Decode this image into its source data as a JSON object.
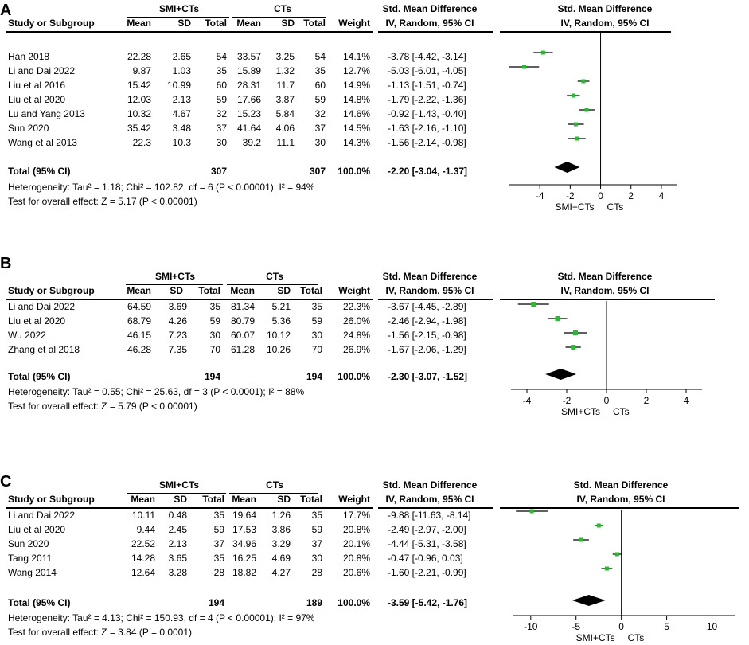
{
  "panels": [
    {
      "label": "A",
      "header": {
        "group1": "SMI+CTs",
        "group2": "CTs",
        "smd_title": "Std. Mean Difference",
        "smd_sub": "IV, Random, 95% CI",
        "plot_title": "Std. Mean Difference",
        "plot_sub": "IV, Random, 95% CI",
        "cols": [
          "Study or Subgroup",
          "Mean",
          "SD",
          "Total",
          "Mean",
          "SD",
          "Total",
          "Weight"
        ]
      },
      "studies": [
        {
          "name": "Han 2018",
          "m1": "22.28",
          "sd1": "2.65",
          "n1": "54",
          "m2": "33.57",
          "sd2": "3.25",
          "n2": "54",
          "weight": "14.1%",
          "ci": "-3.78 [-4.42, -3.14]"
        },
        {
          "name": "Li and Dai 2022",
          "m1": "9.87",
          "sd1": "1.03",
          "n1": "35",
          "m2": "15.89",
          "sd2": "1.32",
          "n2": "35",
          "weight": "12.7%",
          "ci": "-5.03 [-6.01, -4.05]"
        },
        {
          "name": "Liu et al 2016",
          "m1": "15.42",
          "sd1": "10.99",
          "n1": "60",
          "m2": "28.31",
          "sd2": "11.7",
          "n2": "60",
          "weight": "14.9%",
          "ci": "-1.13 [-1.51, -0.74]"
        },
        {
          "name": "Liu et al 2020",
          "m1": "12.03",
          "sd1": "2.13",
          "n1": "59",
          "m2": "17.66",
          "sd2": "3.87",
          "n2": "59",
          "weight": "14.8%",
          "ci": "-1.79 [-2.22, -1.36]"
        },
        {
          "name": "Lu and Yang 2013",
          "m1": "10.32",
          "sd1": "4.67",
          "n1": "32",
          "m2": "15.23",
          "sd2": "5.84",
          "n2": "32",
          "weight": "14.6%",
          "ci": "-0.92 [-1.43, -0.40]"
        },
        {
          "name": "Sun 2020",
          "m1": "35.42",
          "sd1": "3.48",
          "n1": "37",
          "m2": "41.64",
          "sd2": "4.06",
          "n2": "37",
          "weight": "14.5%",
          "ci": "-1.63 [-2.16, -1.10]"
        },
        {
          "name": "Wang et al 2013",
          "m1": "22.3",
          "sd1": "10.3",
          "n1": "30",
          "m2": "39.2",
          "sd2": "11.1",
          "n2": "30",
          "weight": "14.3%",
          "ci": "-1.56 [-2.14, -0.98]"
        }
      ],
      "total": {
        "label": "Total (95% CI)",
        "n1": "307",
        "n2": "307",
        "weight": "100.0%",
        "ci": "-2.20 [-3.04, -1.37]"
      },
      "heterogeneity": "Heterogeneity: Tau² = 1.18; Chi² = 102.82, df = 6 (P < 0.00001); I² = 94%",
      "overall": "Test for overall effect: Z = 5.17 (P < 0.00001)",
      "axis_labels": {
        "left": "SMI+CTs",
        "right": "CTs"
      }
    },
    {
      "label": "B",
      "header": {
        "group1": "SMI+CTs",
        "group2": "CTs",
        "smd_title": "Std. Mean Difference",
        "smd_sub": "IV, Random, 95% CI",
        "plot_title": "Std. Mean Difference",
        "plot_sub": "IV, Random, 95% CI",
        "cols": [
          "Study or Subgroup",
          "Mean",
          "SD",
          "Total",
          "Mean",
          "SD",
          "Total",
          "Weight"
        ]
      },
      "studies": [
        {
          "name": "Li and Dai 2022",
          "m1": "64.59",
          "sd1": "3.69",
          "n1": "35",
          "m2": "81.34",
          "sd2": "5.21",
          "n2": "35",
          "weight": "22.3%",
          "ci": "-3.67 [-4.45, -2.89]"
        },
        {
          "name": "Liu et al 2020",
          "m1": "68.79",
          "sd1": "4.26",
          "n1": "59",
          "m2": "80.79",
          "sd2": "5.36",
          "n2": "59",
          "weight": "26.0%",
          "ci": "-2.46 [-2.94, -1.98]"
        },
        {
          "name": "Wu 2022",
          "m1": "46.15",
          "sd1": "7.23",
          "n1": "30",
          "m2": "60.07",
          "sd2": "10.12",
          "n2": "30",
          "weight": "24.8%",
          "ci": "-1.56 [-2.15, -0.98]"
        },
        {
          "name": "Zhang et al 2018",
          "m1": "46.28",
          "sd1": "7.35",
          "n1": "70",
          "m2": "61.28",
          "sd2": "10.26",
          "n2": "70",
          "weight": "26.9%",
          "ci": "-1.67 [-2.06, -1.29]"
        }
      ],
      "total": {
        "label": "Total (95% CI)",
        "n1": "194",
        "n2": "194",
        "weight": "100.0%",
        "ci": "-2.30 [-3.07, -1.52]"
      },
      "heterogeneity": "Heterogeneity: Tau² = 0.55; Chi² = 25.63, df = 3 (P < 0.0001); I² = 88%",
      "overall": "Test for overall effect: Z = 5.79 (P < 0.00001)",
      "axis_labels": {
        "left": "SMI+CTs",
        "right": "CTs"
      }
    },
    {
      "label": "C",
      "header": {
        "group1": "SMI+CTs",
        "group2": "CTs",
        "smd_title": "Std. Mean Difference",
        "smd_sub": "IV, Random, 95% CI",
        "plot_title": "Std. Mean Difference",
        "plot_sub": "IV, Random, 95% CI",
        "cols": [
          "Study or Subgroup",
          "Mean",
          "SD",
          "Total",
          "Mean",
          "SD",
          "Total",
          "Weight"
        ]
      },
      "studies": [
        {
          "name": "Li and Dai 2022",
          "m1": "10.11",
          "sd1": "0.48",
          "n1": "35",
          "m2": "19.64",
          "sd2": "1.26",
          "n2": "35",
          "weight": "17.7%",
          "ci": "-9.88 [-11.63, -8.14]"
        },
        {
          "name": "Liu et al 2020",
          "m1": "9.44",
          "sd1": "2.45",
          "n1": "59",
          "m2": "17.53",
          "sd2": "3.86",
          "n2": "59",
          "weight": "20.8%",
          "ci": "-2.49 [-2.97, -2.00]"
        },
        {
          "name": "Sun 2020",
          "m1": "22.52",
          "sd1": "2.13",
          "n1": "37",
          "m2": "34.96",
          "sd2": "3.29",
          "n2": "37",
          "weight": "20.1%",
          "ci": "-4.44 [-5.31, -3.58]"
        },
        {
          "name": "Tang 2011",
          "m1": "14.28",
          "sd1": "3.65",
          "n1": "35",
          "m2": "16.25",
          "sd2": "4.69",
          "n2": "30",
          "weight": "20.8%",
          "ci": "-0.47 [-0.96, 0.03]"
        },
        {
          "name": "Wang 2014",
          "m1": "12.64",
          "sd1": "3.28",
          "n1": "28",
          "m2": "18.82",
          "sd2": "4.27",
          "n2": "28",
          "weight": "20.6%",
          "ci": "-1.60 [-2.21, -0.99]"
        }
      ],
      "total": {
        "label": "Total (95% CI)",
        "n1": "194",
        "n2": "189",
        "weight": "100.0%",
        "ci": "-3.59 [-5.42, -1.76]"
      },
      "heterogeneity": "Heterogeneity: Tau² = 4.13; Chi² = 150.93, df = 4 (P < 0.00001); I² = 97%",
      "overall": "Test for overall effect: Z = 3.84 (P = 0.0001)",
      "axis_labels": {
        "left": "SMI+CTs",
        "right": "CTs"
      }
    }
  ],
  "colors": {
    "marker": "#22c12a",
    "diamond": "#000000",
    "line": "#000000"
  },
  "chart_data": [
    {
      "type": "scatter",
      "subtype": "forest",
      "title": "Std. Mean Difference",
      "xlabel": "SMI+CTs   CTs",
      "xlim": [
        -6,
        5
      ],
      "xticks": [
        -4,
        -2,
        0,
        2,
        4
      ],
      "series": [
        {
          "name": "studies",
          "values": [
            -3.78,
            -5.03,
            -1.13,
            -1.79,
            -0.92,
            -1.63,
            -1.56
          ],
          "ci_low": [
            -4.42,
            -6.01,
            -1.51,
            -2.22,
            -1.43,
            -2.16,
            -2.14
          ],
          "ci_high": [
            -3.14,
            -4.05,
            -0.74,
            -1.36,
            -0.4,
            -1.1,
            -0.98
          ]
        }
      ],
      "summary": {
        "value": -2.2,
        "ci": [
          -3.04,
          -1.37
        ]
      }
    },
    {
      "type": "scatter",
      "subtype": "forest",
      "title": "Std. Mean Difference",
      "xlabel": "SMI+CTs   CTs",
      "xlim": [
        -4.8,
        4.8
      ],
      "xticks": [
        -4,
        -2,
        0,
        2,
        4
      ],
      "series": [
        {
          "name": "studies",
          "values": [
            -3.67,
            -2.46,
            -1.56,
            -1.67
          ],
          "ci_low": [
            -4.45,
            -2.94,
            -2.15,
            -2.06
          ],
          "ci_high": [
            -2.89,
            -1.98,
            -0.98,
            -1.29
          ]
        }
      ],
      "summary": {
        "value": -2.3,
        "ci": [
          -3.07,
          -1.52
        ]
      }
    },
    {
      "type": "scatter",
      "subtype": "forest",
      "title": "Std. Mean Difference",
      "xlabel": "SMI+CTs   CTs",
      "xlim": [
        -12,
        12.5
      ],
      "xticks": [
        -10,
        -5,
        0,
        5,
        10
      ],
      "series": [
        {
          "name": "studies",
          "values": [
            -9.88,
            -2.49,
            -4.44,
            -0.47,
            -1.6
          ],
          "ci_low": [
            -11.63,
            -2.97,
            -5.31,
            -0.96,
            -2.21
          ],
          "ci_high": [
            -8.14,
            -2.0,
            -3.58,
            0.03,
            -0.99
          ]
        }
      ],
      "summary": {
        "value": -3.59,
        "ci": [
          -5.42,
          -1.76
        ]
      }
    }
  ]
}
